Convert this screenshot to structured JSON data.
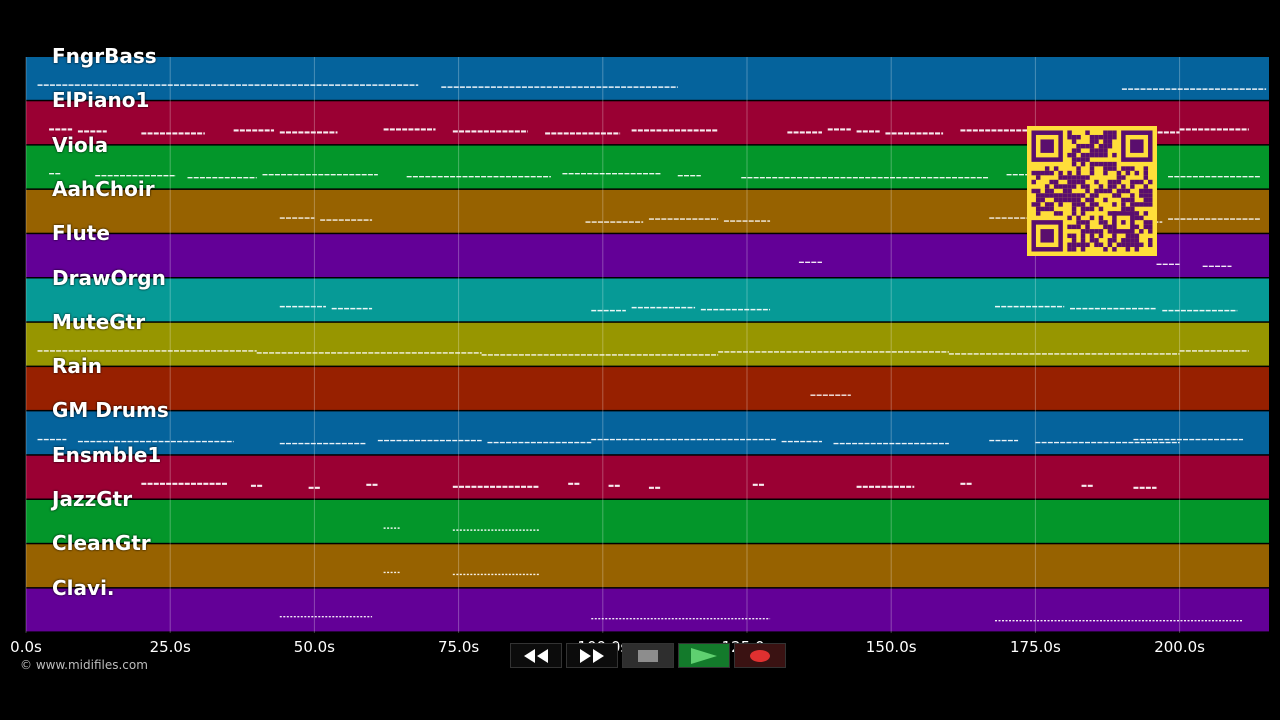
{
  "colors": {
    "background": "#000000",
    "note": "#ffffff",
    "grid": "#ffffff",
    "qr_fg": "#5a0e6e",
    "qr_bg": "#ffde3a"
  },
  "tracks": [
    {
      "label": "FngrBass",
      "color": "#05639c"
    },
    {
      "label": "ElPiano1",
      "color": "#9a0033"
    },
    {
      "label": "Viola",
      "color": "#03962a"
    },
    {
      "label": "AahChoir",
      "color": "#976200"
    },
    {
      "label": "Flute",
      "color": "#630097"
    },
    {
      "label": "DrawOrgn",
      "color": "#069a96"
    },
    {
      "label": "MuteGtr",
      "color": "#979600"
    },
    {
      "label": "Rain",
      "color": "#972000"
    },
    {
      "label": "GM Drums",
      "color": "#05639c"
    },
    {
      "label": "Ensmble1",
      "color": "#9a0033"
    },
    {
      "label": "JazzGtr",
      "color": "#03962a"
    },
    {
      "label": "CleanGtr",
      "color": "#976200"
    },
    {
      "label": "Clavi.",
      "color": "#630097"
    }
  ],
  "timeline": {
    "ticks": [
      {
        "seconds": 0,
        "label": "0.0s"
      },
      {
        "seconds": 25,
        "label": "25.0s"
      },
      {
        "seconds": 50,
        "label": "50.0s"
      },
      {
        "seconds": 75,
        "label": "75.0s"
      },
      {
        "seconds": 100,
        "label": "100.0s"
      },
      {
        "seconds": 125,
        "label": "125.0s"
      },
      {
        "seconds": 150,
        "label": "150.0s"
      },
      {
        "seconds": 175,
        "label": "175.0s"
      },
      {
        "seconds": 200,
        "label": "200.0s"
      }
    ],
    "range_seconds": [
      0,
      215.5
    ]
  },
  "credit": "© www.midifiles.com",
  "transport": [
    {
      "name": "rewind-button",
      "icon": "rewind-icon"
    },
    {
      "name": "fast-forward-button",
      "icon": "fast-forward-icon"
    },
    {
      "name": "stop-button",
      "icon": "stop-icon"
    },
    {
      "name": "play-button",
      "icon": "play-icon"
    },
    {
      "name": "record-button",
      "icon": "record-icon"
    }
  ],
  "note_segments": [
    [
      [
        2,
        68
      ],
      [
        72,
        113
      ],
      [
        190,
        215
      ]
    ],
    [
      [
        4,
        8
      ],
      [
        9,
        14
      ],
      [
        20,
        31
      ],
      [
        36,
        43
      ],
      [
        44,
        54
      ],
      [
        62,
        71
      ],
      [
        74,
        87
      ],
      [
        90,
        103
      ],
      [
        105,
        120
      ],
      [
        132,
        138
      ],
      [
        139,
        143
      ],
      [
        144,
        148
      ],
      [
        149,
        159
      ],
      [
        162,
        177
      ],
      [
        179,
        200
      ],
      [
        200,
        212
      ]
    ],
    [
      [
        4,
        6
      ],
      [
        12,
        26
      ],
      [
        28,
        40
      ],
      [
        41,
        61
      ],
      [
        66,
        91
      ],
      [
        93,
        110
      ],
      [
        113,
        117
      ],
      [
        124,
        167
      ],
      [
        170,
        174
      ],
      [
        198,
        214
      ]
    ],
    [
      [
        44,
        50
      ],
      [
        51,
        60
      ],
      [
        97,
        107
      ],
      [
        108,
        120
      ],
      [
        121,
        129
      ],
      [
        167,
        174
      ],
      [
        175,
        188
      ],
      [
        189,
        197
      ],
      [
        198,
        214
      ]
    ],
    [
      [
        134,
        138
      ],
      [
        196,
        200
      ],
      [
        204,
        209
      ]
    ],
    [
      [
        44,
        52
      ],
      [
        53,
        60
      ],
      [
        98,
        104
      ],
      [
        105,
        116
      ],
      [
        117,
        129
      ],
      [
        168,
        180
      ],
      [
        181,
        196
      ],
      [
        197,
        210
      ]
    ],
    [
      [
        2,
        40
      ],
      [
        40,
        79
      ],
      [
        79,
        120
      ],
      [
        120,
        160
      ],
      [
        160,
        200
      ],
      [
        200,
        212
      ]
    ],
    [
      [
        136,
        143
      ]
    ],
    [
      [
        2,
        7
      ],
      [
        9,
        36
      ],
      [
        44,
        59
      ],
      [
        61,
        79
      ],
      [
        80,
        98
      ],
      [
        98,
        130
      ],
      [
        131,
        138
      ],
      [
        140,
        160
      ],
      [
        167,
        172
      ],
      [
        175,
        200
      ],
      [
        192,
        211
      ]
    ],
    [
      [
        20,
        35
      ],
      [
        39,
        41
      ],
      [
        49,
        51
      ],
      [
        59,
        61
      ],
      [
        74,
        89
      ],
      [
        94,
        96
      ],
      [
        101,
        103
      ],
      [
        108,
        110
      ],
      [
        126,
        128
      ],
      [
        144,
        154
      ],
      [
        162,
        164
      ],
      [
        183,
        185
      ],
      [
        192,
        196
      ]
    ],
    [
      [
        62,
        65
      ],
      [
        74,
        89
      ]
    ],
    [
      [
        62,
        65
      ],
      [
        74,
        89
      ]
    ],
    [
      [
        44,
        60
      ],
      [
        98,
        129
      ],
      [
        168,
        211
      ]
    ]
  ]
}
